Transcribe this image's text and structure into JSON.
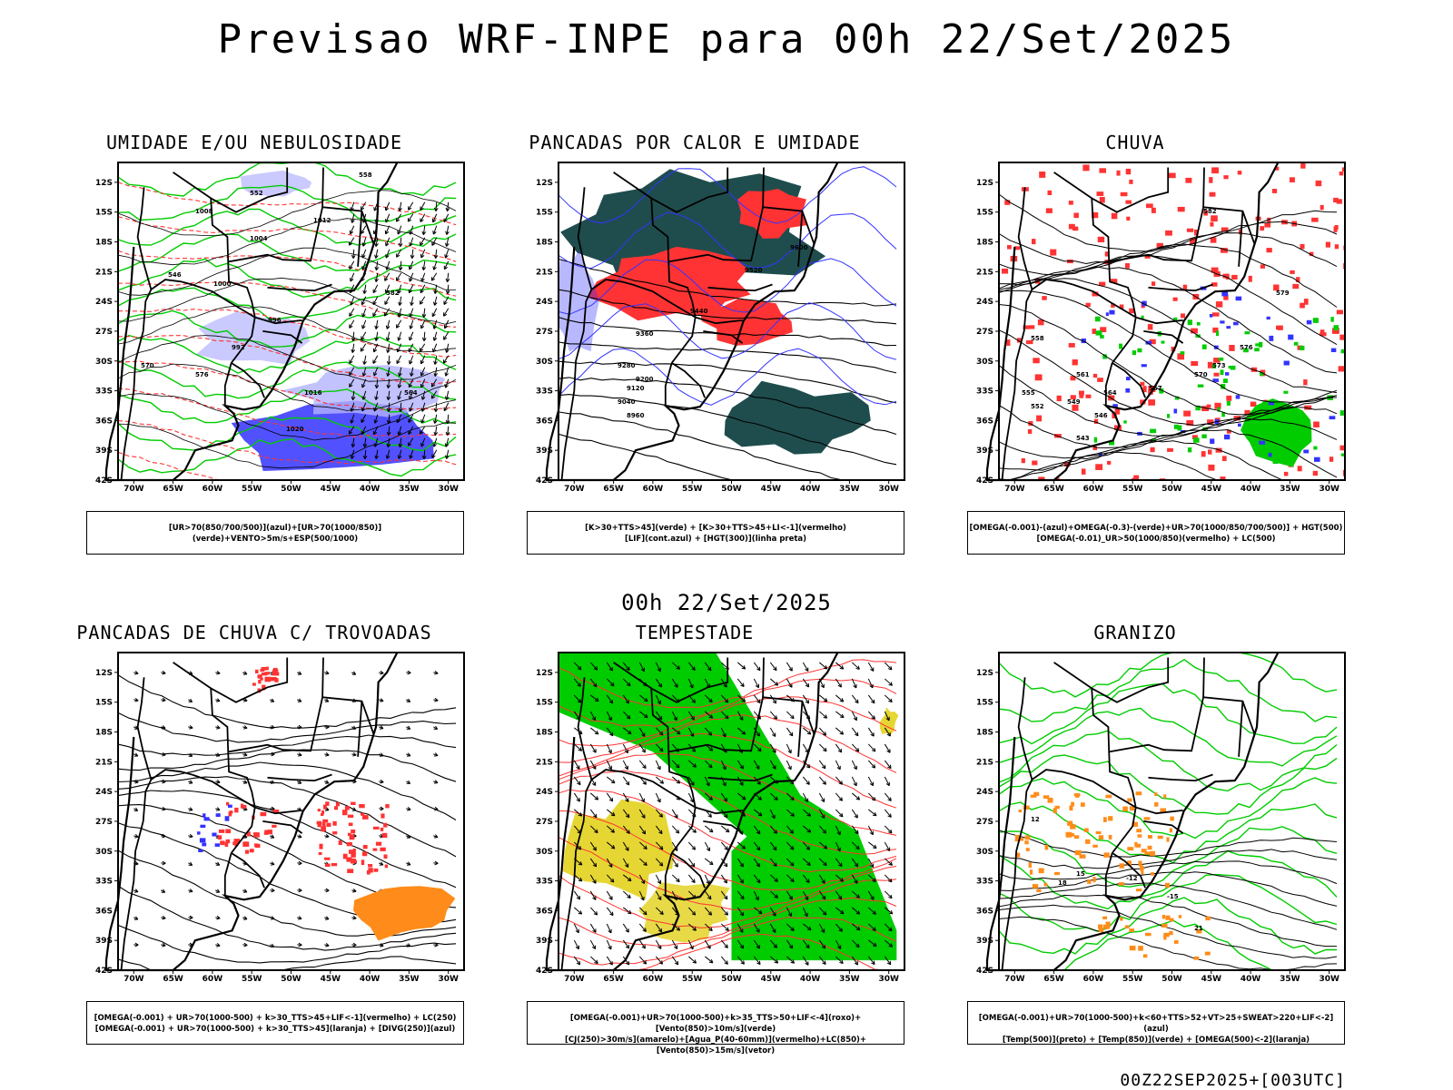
{
  "title": "Previsao WRF-INPE  para 00h 22/Set/2025",
  "middle_date": "00h 22/Set/2025",
  "footer_stamp": "00Z22SEP2025+[003UTC]",
  "lat_labels": [
    "12S",
    "15S",
    "18S",
    "21S",
    "24S",
    "27S",
    "30S",
    "33S",
    "36S",
    "39S",
    "42S"
  ],
  "lon_labels": [
    "70W",
    "65W",
    "60W",
    "55W",
    "50W",
    "45W",
    "40W",
    "35W",
    "30W"
  ],
  "colors": {
    "blue": "#3333ff",
    "light_blue": "#b3b3ff",
    "green": "#00cc00",
    "red": "#ff3333",
    "dark_teal": "#1f4d4d",
    "orange": "#ff8c1a",
    "yellow": "#e6d633",
    "black": "#000000"
  },
  "panels": [
    {
      "title": "UMIDADE E/OU NEBULOSIDADE",
      "legend": [
        "[UR>70(850/700/500)](azul)+[UR>70(1000/850)](verde)+VENTO>5m/s+ESP(500/1000)"
      ],
      "contour_labels": [
        "1008",
        "1004",
        "1012",
        "1000",
        "996",
        "992",
        "1016",
        "1020",
        "576",
        "570",
        "564",
        "558",
        "552",
        "546",
        "582"
      ]
    },
    {
      "title": "PANCADAS POR CALOR E UMIDADE",
      "legend": [
        "[K>30+TTS>45](verde) + [K>30+TTS>45+LI<-1](vermelho)",
        "[LIF](cont.azul) + [HGT(300)](linha preta)"
      ],
      "contour_labels": [
        "9600",
        "9520",
        "9440",
        "9360",
        "9280",
        "9200",
        "9120",
        "9040",
        "8960"
      ]
    },
    {
      "title": "CHUVA",
      "legend": [
        "[OMEGA(-0.001)-(azul)+OMEGA(-0.3)-(verde)+UR>70(1000/850/700/500)] + HGT(500)",
        "[OMEGA(-0.01)_UR>50(1000/850)(vermelho) + LC(500)"
      ],
      "contour_labels": [
        "582",
        "579",
        "576",
        "573",
        "570",
        "567",
        "564",
        "561",
        "558",
        "555",
        "552",
        "549",
        "546",
        "543"
      ]
    },
    {
      "title": "PANCADAS DE CHUVA C/ TROVOADAS",
      "legend": [
        "[OMEGA(-0.001) + UR>70(1000-500) + k>30_TTS>45+LIF<-1](vermelho) + LC(250)",
        "[OMEGA(-0.001) + UR>70(1000-500) + k>30_TTS>45](laranja) + [DIVG(250)](azul)"
      ],
      "contour_labels": []
    },
    {
      "title": "TEMPESTADE",
      "legend": [
        "[OMEGA(-0.001)+UR>70(1000-500)+k>35_TTS>50+LIF<-4](roxo)+[Vento(850)>10m/s](verde)",
        "[CJ(250)>30m/s](amarelo)+[Agua_P(40-60mm)](vermelho)+LC(850)+[Vento(850)>15m/s](vetor)"
      ],
      "contour_labels": []
    },
    {
      "title": "GRANIZO",
      "legend": [
        "[OMEGA(-0.001)+UR>70(1000-500)+k<60+TTS>52+VT>25+SWEAT>220+LIF<-2](azul)",
        "[Temp(500)](preto) + [Temp(850)](verde) + [OMEGA(500)<-2](laranja)"
      ],
      "contour_labels": [
        "-12",
        "-15",
        "12",
        "15",
        "18",
        "21"
      ]
    }
  ]
}
